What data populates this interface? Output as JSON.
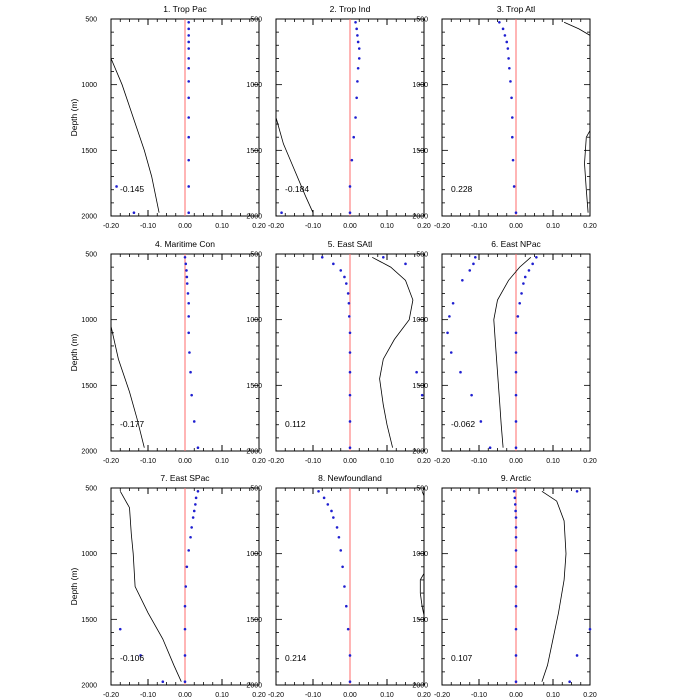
{
  "colors": {
    "zero_line": "#ff6b6b",
    "points": "#1f1fd0",
    "curve": "#000000"
  },
  "ylabel": "Depth (m)",
  "chart_data": [
    {
      "type": "scatter",
      "title": "1. Trop Pac",
      "value": "-0.145",
      "xlim": [
        -0.2,
        0.2
      ],
      "ylim": [
        2000,
        500
      ],
      "grid": false,
      "xticks": [
        "-0.20",
        "-0.10",
        "0.00",
        "0.10",
        "0.20"
      ],
      "yticks": [
        "500",
        "1000",
        "1500",
        "2000"
      ],
      "points": [
        [
          0.01,
          525
        ],
        [
          0.01,
          575
        ],
        [
          0.01,
          625
        ],
        [
          0.01,
          675
        ],
        [
          0.01,
          725
        ],
        [
          0.01,
          800
        ],
        [
          0.01,
          875
        ],
        [
          0.01,
          975
        ],
        [
          0.01,
          1100
        ],
        [
          0.01,
          1250
        ],
        [
          0.01,
          1400
        ],
        [
          0.01,
          1575
        ],
        [
          0.01,
          1775
        ],
        [
          0.01,
          1975
        ],
        [
          -0.185,
          1775
        ],
        [
          -0.138,
          1975
        ]
      ],
      "curve": [
        [
          -0.2,
          800
        ],
        [
          -0.17,
          1000
        ],
        [
          -0.14,
          1250
        ],
        [
          -0.11,
          1500
        ],
        [
          -0.09,
          1700
        ],
        [
          -0.07,
          1975
        ]
      ]
    },
    {
      "type": "scatter",
      "title": "2. Trop Ind",
      "value": "-0.184",
      "xlim": [
        -0.2,
        0.2
      ],
      "ylim": [
        2000,
        500
      ],
      "grid": false,
      "xticks": [
        "-0.20",
        "-0.10",
        "0.00",
        "0.10",
        "0.20"
      ],
      "yticks": [
        "500",
        "1000",
        "1500",
        "2000"
      ],
      "points": [
        [
          0.015,
          525
        ],
        [
          0.018,
          575
        ],
        [
          0.02,
          625
        ],
        [
          0.022,
          675
        ],
        [
          0.025,
          725
        ],
        [
          0.025,
          800
        ],
        [
          0.022,
          875
        ],
        [
          0.02,
          975
        ],
        [
          0.018,
          1100
        ],
        [
          0.015,
          1250
        ],
        [
          0.01,
          1400
        ],
        [
          0.005,
          1575
        ],
        [
          0.0,
          1775
        ],
        [
          0.0,
          1975
        ],
        [
          -0.185,
          1975
        ]
      ],
      "curve": [
        [
          -0.2,
          1250
        ],
        [
          -0.18,
          1450
        ],
        [
          -0.15,
          1650
        ],
        [
          -0.12,
          1850
        ],
        [
          -0.1,
          1975
        ]
      ]
    },
    {
      "type": "scatter",
      "title": "3. Trop Atl",
      "value": "0.228",
      "xlim": [
        -0.2,
        0.2
      ],
      "ylim": [
        2000,
        500
      ],
      "grid": false,
      "xticks": [
        "-0.20",
        "-0.10",
        "0.00",
        "0.10",
        "0.20"
      ],
      "yticks": [
        "500",
        "1000",
        "1500",
        "2000"
      ],
      "points": [
        [
          -0.045,
          525
        ],
        [
          -0.035,
          575
        ],
        [
          -0.03,
          625
        ],
        [
          -0.025,
          675
        ],
        [
          -0.022,
          725
        ],
        [
          -0.02,
          800
        ],
        [
          -0.018,
          875
        ],
        [
          -0.015,
          975
        ],
        [
          -0.012,
          1100
        ],
        [
          -0.01,
          1250
        ],
        [
          -0.01,
          1400
        ],
        [
          -0.008,
          1575
        ],
        [
          -0.005,
          1775
        ],
        [
          0.0,
          1975
        ]
      ],
      "curve_segments": [
        [
          [
            0.13,
            525
          ],
          [
            0.17,
            575
          ],
          [
            0.2,
            625
          ]
        ],
        [
          [
            0.2,
            1350
          ],
          [
            0.19,
            1400
          ],
          [
            0.185,
            1600
          ],
          [
            0.19,
            1800
          ],
          [
            0.195,
            1975
          ]
        ]
      ]
    },
    {
      "type": "scatter",
      "title": "4. Maritime Con",
      "value": "-0.177",
      "xlim": [
        -0.2,
        0.2
      ],
      "ylim": [
        2000,
        500
      ],
      "grid": false,
      "xticks": [
        "-0.20",
        "-0.10",
        "0.00",
        "0.10",
        "0.20"
      ],
      "yticks": [
        "500",
        "1000",
        "1500",
        "2000"
      ],
      "points": [
        [
          0.0,
          525
        ],
        [
          0.002,
          575
        ],
        [
          0.004,
          625
        ],
        [
          0.005,
          675
        ],
        [
          0.006,
          725
        ],
        [
          0.008,
          800
        ],
        [
          0.01,
          875
        ],
        [
          0.01,
          975
        ],
        [
          0.01,
          1100
        ],
        [
          0.012,
          1250
        ],
        [
          0.015,
          1400
        ],
        [
          0.018,
          1575
        ],
        [
          0.025,
          1775
        ],
        [
          0.035,
          1975
        ]
      ],
      "curve": [
        [
          -0.2,
          1050
        ],
        [
          -0.18,
          1300
        ],
        [
          -0.15,
          1550
        ],
        [
          -0.13,
          1750
        ],
        [
          -0.11,
          1975
        ]
      ]
    },
    {
      "type": "scatter",
      "title": "5. East SAtl",
      "value": "0.112",
      "xlim": [
        -0.2,
        0.2
      ],
      "ylim": [
        2000,
        500
      ],
      "grid": false,
      "xticks": [
        "-0.20",
        "-0.10",
        "0.00",
        "0.10",
        "0.20"
      ],
      "yticks": [
        "500",
        "1000",
        "1500",
        "2000"
      ],
      "points": [
        [
          -0.075,
          525
        ],
        [
          -0.045,
          575
        ],
        [
          -0.025,
          625
        ],
        [
          -0.015,
          675
        ],
        [
          -0.01,
          725
        ],
        [
          -0.005,
          800
        ],
        [
          -0.003,
          875
        ],
        [
          -0.002,
          975
        ],
        [
          0.0,
          1100
        ],
        [
          0.0,
          1250
        ],
        [
          0.0,
          1400
        ],
        [
          0.0,
          1575
        ],
        [
          0.0,
          1775
        ],
        [
          0.0,
          1975
        ],
        [
          0.09,
          525
        ],
        [
          0.15,
          575
        ],
        [
          0.18,
          1400
        ],
        [
          0.195,
          1575
        ]
      ],
      "curve": [
        [
          0.06,
          525
        ],
        [
          0.11,
          600
        ],
        [
          0.15,
          700
        ],
        [
          0.17,
          850
        ],
        [
          0.16,
          1000
        ],
        [
          0.12,
          1150
        ],
        [
          0.09,
          1300
        ],
        [
          0.08,
          1450
        ],
        [
          0.09,
          1650
        ],
        [
          0.1,
          1800
        ],
        [
          0.115,
          1975
        ]
      ]
    },
    {
      "type": "scatter",
      "title": "6. East NPac",
      "value": "-0.062",
      "xlim": [
        -0.2,
        0.2
      ],
      "ylim": [
        2000,
        500
      ],
      "grid": false,
      "xticks": [
        "-0.20",
        "-0.10",
        "0.00",
        "0.10",
        "0.20"
      ],
      "yticks": [
        "500",
        "1000",
        "1500",
        "2000"
      ],
      "points": [
        [
          0.055,
          525
        ],
        [
          0.045,
          575
        ],
        [
          0.035,
          625
        ],
        [
          0.025,
          675
        ],
        [
          0.02,
          725
        ],
        [
          0.015,
          800
        ],
        [
          0.01,
          875
        ],
        [
          0.005,
          975
        ],
        [
          0.0,
          1100
        ],
        [
          0.0,
          1250
        ],
        [
          0.0,
          1400
        ],
        [
          0.0,
          1575
        ],
        [
          0.0,
          1775
        ],
        [
          0.0,
          1975
        ],
        [
          -0.11,
          525
        ],
        [
          -0.115,
          575
        ],
        [
          -0.125,
          625
        ],
        [
          -0.145,
          700
        ],
        [
          -0.17,
          875
        ],
        [
          -0.18,
          975
        ],
        [
          -0.185,
          1100
        ],
        [
          -0.175,
          1250
        ],
        [
          -0.15,
          1400
        ],
        [
          -0.12,
          1575
        ],
        [
          -0.095,
          1775
        ],
        [
          -0.07,
          1975
        ]
      ],
      "curve": [
        [
          0.04,
          525
        ],
        [
          0.01,
          600
        ],
        [
          -0.02,
          700
        ],
        [
          -0.05,
          850
        ],
        [
          -0.06,
          1000
        ],
        [
          -0.055,
          1200
        ],
        [
          -0.05,
          1400
        ],
        [
          -0.045,
          1600
        ],
        [
          -0.04,
          1800
        ],
        [
          -0.035,
          1975
        ]
      ]
    },
    {
      "type": "scatter",
      "title": "7. East SPac",
      "value": "-0.106",
      "xlim": [
        -0.2,
        0.2
      ],
      "ylim": [
        2000,
        500
      ],
      "grid": false,
      "xticks": [
        "-0.20",
        "-0.10",
        "0.00",
        "0.10",
        "0.20"
      ],
      "yticks": [
        "500",
        "1000",
        "1500",
        "2000"
      ],
      "points": [
        [
          0.035,
          525
        ],
        [
          0.03,
          575
        ],
        [
          0.028,
          625
        ],
        [
          0.025,
          675
        ],
        [
          0.022,
          725
        ],
        [
          0.018,
          800
        ],
        [
          0.015,
          875
        ],
        [
          0.01,
          975
        ],
        [
          0.005,
          1100
        ],
        [
          0.002,
          1250
        ],
        [
          0.0,
          1400
        ],
        [
          0.0,
          1575
        ],
        [
          0.0,
          1775
        ],
        [
          0.0,
          1975
        ],
        [
          -0.175,
          1575
        ],
        [
          -0.12,
          1775
        ],
        [
          -0.06,
          1975
        ]
      ],
      "curve": [
        [
          -0.175,
          525
        ],
        [
          -0.15,
          650
        ],
        [
          -0.145,
          850
        ],
        [
          -0.14,
          1000
        ],
        [
          -0.135,
          1250
        ],
        [
          -0.1,
          1450
        ],
        [
          -0.06,
          1650
        ],
        [
          -0.03,
          1850
        ],
        [
          -0.01,
          1975
        ]
      ]
    },
    {
      "type": "scatter",
      "title": "8. Newfoundland",
      "value": "0.214",
      "xlim": [
        -0.2,
        0.2
      ],
      "ylim": [
        2000,
        500
      ],
      "grid": false,
      "xticks": [
        "-0.20",
        "-0.10",
        "0.00",
        "0.10",
        "0.20"
      ],
      "yticks": [
        "500",
        "1000",
        "1500",
        "2000"
      ],
      "points": [
        [
          -0.085,
          525
        ],
        [
          -0.07,
          575
        ],
        [
          -0.06,
          625
        ],
        [
          -0.05,
          675
        ],
        [
          -0.045,
          725
        ],
        [
          -0.035,
          800
        ],
        [
          -0.03,
          875
        ],
        [
          -0.025,
          975
        ],
        [
          -0.02,
          1100
        ],
        [
          -0.015,
          1250
        ],
        [
          -0.01,
          1400
        ],
        [
          -0.005,
          1575
        ],
        [
          0.0,
          1775
        ],
        [
          0.0,
          1975
        ]
      ],
      "curve_segments": [
        [
          [
            0.195,
            525
          ],
          [
            0.2,
            560
          ]
        ],
        [
          [
            0.2,
            1150
          ],
          [
            0.19,
            1200
          ],
          [
            0.19,
            1300
          ],
          [
            0.195,
            1400
          ],
          [
            0.2,
            1470
          ]
        ]
      ]
    },
    {
      "type": "scatter",
      "title": "9. Arctic",
      "value": "0.107",
      "xlim": [
        -0.2,
        0.2
      ],
      "ylim": [
        2000,
        500
      ],
      "grid": false,
      "xticks": [
        "-0.20",
        "-0.10",
        "0.00",
        "0.10",
        "0.20"
      ],
      "yticks": [
        "500",
        "1000",
        "1500",
        "2000"
      ],
      "points": [
        [
          -0.005,
          525
        ],
        [
          -0.003,
          575
        ],
        [
          -0.002,
          625
        ],
        [
          -0.001,
          675
        ],
        [
          0.0,
          725
        ],
        [
          0.0,
          800
        ],
        [
          0.0,
          875
        ],
        [
          0.0,
          975
        ],
        [
          0.0,
          1100
        ],
        [
          0.0,
          1250
        ],
        [
          0.0,
          1400
        ],
        [
          0.0,
          1575
        ],
        [
          0.0,
          1775
        ],
        [
          0.0,
          1975
        ],
        [
          0.165,
          525
        ],
        [
          0.2,
          1575
        ],
        [
          0.165,
          1775
        ],
        [
          0.145,
          1975
        ]
      ],
      "curve": [
        [
          0.07,
          525
        ],
        [
          0.11,
          600
        ],
        [
          0.13,
          750
        ],
        [
          0.135,
          1000
        ],
        [
          0.13,
          1200
        ],
        [
          0.115,
          1450
        ],
        [
          0.1,
          1650
        ],
        [
          0.085,
          1850
        ],
        [
          0.07,
          1975
        ]
      ]
    }
  ]
}
